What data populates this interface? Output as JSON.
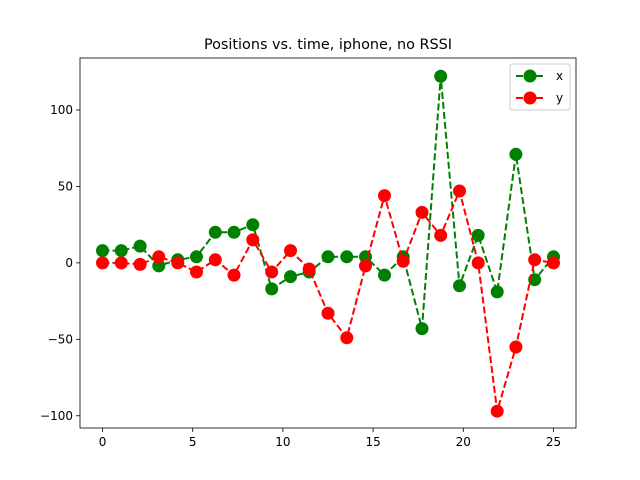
{
  "chart_data": {
    "type": "line",
    "title": "Positions vs. time, iphone, no RSSI",
    "xlabel": "",
    "ylabel": "",
    "xlim": [
      -1.25,
      26.25
    ],
    "ylim": [
      -108,
      134
    ],
    "xticks": [
      0,
      5,
      10,
      15,
      20,
      25
    ],
    "yticks": [
      -100,
      -50,
      0,
      50,
      100
    ],
    "grid": false,
    "legend_position": "top-right",
    "x": [
      0,
      1.04,
      2.08,
      3.12,
      4.17,
      5.21,
      6.25,
      7.29,
      8.33,
      9.38,
      10.42,
      11.46,
      12.5,
      13.54,
      14.58,
      15.63,
      16.67,
      17.71,
      18.75,
      19.79,
      20.83,
      21.88,
      22.92,
      23.96,
      25.0
    ],
    "series": [
      {
        "name": "x",
        "color": "#008000",
        "line_style": "dashed",
        "marker": "circle",
        "values": [
          8,
          8,
          11,
          -2,
          2,
          4,
          20,
          20,
          25,
          -17,
          -9,
          -6,
          4,
          4,
          4,
          -8,
          4,
          -43,
          122,
          -15,
          18,
          -19,
          71,
          -11,
          4
        ]
      },
      {
        "name": "y",
        "color": "#ff0000",
        "line_style": "dashed",
        "marker": "circle",
        "values": [
          0,
          0,
          -1,
          4,
          0,
          -6,
          2,
          -8,
          15,
          -6,
          8,
          -4,
          -33,
          -49,
          -2,
          44,
          1,
          33,
          18,
          47,
          0,
          -97,
          -55,
          2,
          0
        ]
      }
    ],
    "tick_labels": {
      "x": [
        "0",
        "5",
        "10",
        "15",
        "20",
        "25"
      ],
      "y": [
        "−100",
        "−50",
        "0",
        "50",
        "100"
      ]
    }
  }
}
